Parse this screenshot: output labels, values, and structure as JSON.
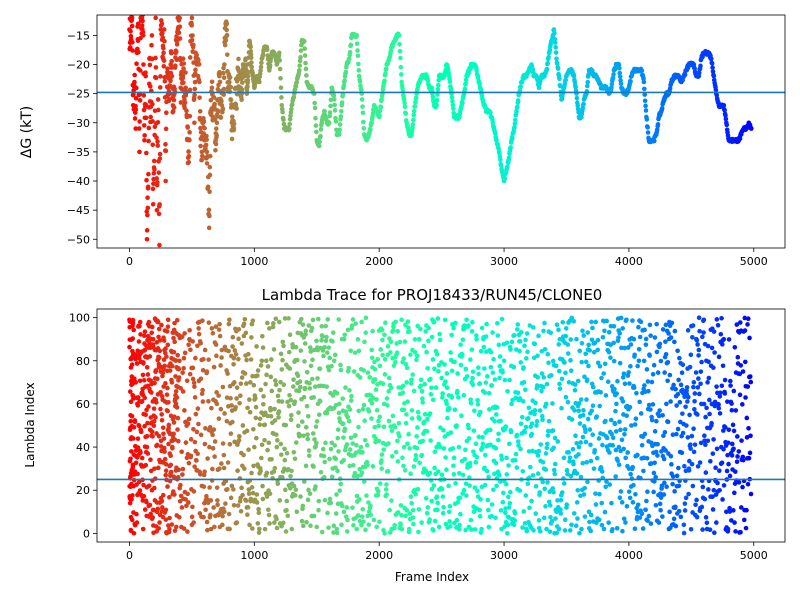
{
  "chart_data": [
    {
      "type": "scatter",
      "title": "",
      "xlabel": "",
      "ylabel": "ΔG (kT)",
      "xlim": [
        -260,
        5250
      ],
      "ylim": [
        -51.5,
        -11.5
      ],
      "xticks": [
        0,
        1000,
        2000,
        3000,
        4000,
        5000
      ],
      "xtick_labels": [
        "0",
        "1000",
        "2000",
        "3000",
        "4000",
        "5000"
      ],
      "yticks": [
        -15,
        -20,
        -25,
        -30,
        -35,
        -40,
        -45,
        -50
      ],
      "ytick_labels": [
        "−15",
        "−20",
        "−25",
        "−30",
        "−35",
        "−40",
        "−45",
        "−50"
      ],
      "hline": -24.8,
      "hline_color": "#1f77b4",
      "colormap": "rainbow (red at frame 0 → purple at frame 5000)",
      "grid": false,
      "series_x": [
        0,
        10,
        20,
        30,
        40,
        50,
        60,
        70,
        80,
        90,
        100,
        110,
        120,
        130,
        140,
        150,
        160,
        170,
        180,
        190,
        200,
        210,
        220,
        230,
        240,
        250,
        260,
        270,
        280,
        290,
        300,
        310,
        320,
        330,
        340,
        350,
        360,
        370,
        380,
        390,
        400,
        410,
        420,
        430,
        440,
        450,
        460,
        470,
        480,
        490,
        500,
        510,
        520,
        530,
        540,
        550,
        560,
        570,
        580,
        590,
        600,
        610,
        620,
        630,
        640,
        650,
        660,
        670,
        680,
        690,
        700,
        710,
        720,
        730,
        740,
        750,
        760,
        770,
        780,
        790,
        800,
        810,
        820,
        830,
        840,
        850,
        860,
        870,
        880,
        890,
        900,
        910,
        920,
        930,
        940,
        950,
        960,
        970,
        980,
        990,
        1000,
        1020,
        1040,
        1060,
        1080,
        1100,
        1120,
        1140,
        1160,
        1180,
        1200,
        1220,
        1240,
        1260,
        1280,
        1300,
        1320,
        1340,
        1360,
        1380,
        1400,
        1420,
        1440,
        1460,
        1480,
        1500,
        1520,
        1540,
        1560,
        1580,
        1600,
        1620,
        1640,
        1660,
        1680,
        1700,
        1720,
        1740,
        1760,
        1780,
        1800,
        1820,
        1840,
        1860,
        1880,
        1900,
        1920,
        1940,
        1960,
        1980,
        2000,
        2020,
        2040,
        2060,
        2080,
        2100,
        2120,
        2140,
        2160,
        2180,
        2200,
        2220,
        2240,
        2260,
        2280,
        2300,
        2320,
        2340,
        2360,
        2380,
        2400,
        2420,
        2440,
        2460,
        2480,
        2500,
        2520,
        2540,
        2560,
        2580,
        2600,
        2620,
        2640,
        2660,
        2680,
        2700,
        2720,
        2740,
        2760,
        2780,
        2800,
        2820,
        2840,
        2860,
        2880,
        2900,
        2920,
        2940,
        2960,
        2980,
        3000,
        3020,
        3040,
        3060,
        3080,
        3100,
        3120,
        3140,
        3160,
        3180,
        3200,
        3220,
        3240,
        3260,
        3280,
        3300,
        3320,
        3340,
        3360,
        3380,
        3400,
        3420,
        3440,
        3460,
        3480,
        3500,
        3520,
        3540,
        3560,
        3580,
        3600,
        3620,
        3640,
        3660,
        3680,
        3700,
        3720,
        3740,
        3760,
        3780,
        3800,
        3820,
        3840,
        3860,
        3880,
        3900,
        3920,
        3940,
        3960,
        3980,
        4000,
        4020,
        4040,
        4060,
        4080,
        4100,
        4120,
        4140,
        4160,
        4180,
        4200,
        4220,
        4240,
        4260,
        4280,
        4300,
        4320,
        4340,
        4360,
        4380,
        4400,
        4420,
        4440,
        4460,
        4480,
        4500,
        4520,
        4540,
        4560,
        4580,
        4600,
        4620,
        4640,
        4660,
        4680,
        4700,
        4720,
        4740,
        4760,
        4780,
        4800,
        4820,
        4840,
        4860,
        4880,
        4900,
        4920,
        4940,
        4960,
        4980
      ],
      "series_y": [
        -14,
        -16,
        -12,
        -27,
        -23,
        -31,
        -18,
        -13,
        -35,
        -12,
        -12,
        -15,
        -33,
        -22,
        -50,
        -41,
        -19,
        -29,
        -15,
        -44,
        -38,
        -12,
        -45,
        -26,
        -51,
        -14,
        -13,
        -19,
        -16,
        -40,
        -22,
        -24,
        -26,
        -20,
        -22,
        -28,
        -25,
        -18,
        -16,
        -12,
        -12,
        -24,
        -22,
        -19,
        -26,
        -24,
        -29,
        -36,
        -33,
        -13,
        -12,
        -17,
        -30,
        -18,
        -20,
        -22,
        -23,
        -34,
        -35,
        -30,
        -33,
        -34,
        -35,
        -41,
        -46,
        -28,
        -24,
        -29,
        -27,
        -33,
        -30,
        -26,
        -22,
        -29,
        -27,
        -25,
        -20,
        -13,
        -13,
        -24,
        -23,
        -26,
        -30,
        -31,
        -27,
        -24,
        -25,
        -22,
        -22,
        -24,
        -25,
        -20,
        -22,
        -19,
        -25,
        -22,
        -16,
        -17,
        -21,
        -22,
        -24,
        -22,
        -23,
        -19,
        -17,
        -17,
        -21,
        -18,
        -18,
        -20,
        -18,
        -27,
        -31,
        -31,
        -31,
        -27,
        -25,
        -23,
        -21,
        -16,
        -16,
        -23,
        -24,
        -24,
        -25,
        -33,
        -34,
        -30,
        -28,
        -30,
        -30,
        -24,
        -26,
        -32,
        -32,
        -27,
        -23,
        -20,
        -19,
        -15,
        -15,
        -15,
        -22,
        -25,
        -32,
        -33,
        -32,
        -30,
        -27,
        -28,
        -29,
        -26,
        -23,
        -20,
        -19,
        -17,
        -16,
        -15,
        -15,
        -23,
        -26,
        -30,
        -32,
        -32,
        -28,
        -25,
        -23,
        -22,
        -22,
        -22,
        -24,
        -24,
        -27,
        -27,
        -22,
        -22,
        -22,
        -20,
        -22,
        -25,
        -29,
        -29,
        -29,
        -27,
        -25,
        -22,
        -21,
        -20,
        -20,
        -21,
        -23,
        -25,
        -27,
        -28,
        -28,
        -29,
        -31,
        -33,
        -35,
        -38,
        -40,
        -38,
        -36,
        -33,
        -31,
        -28,
        -25,
        -23,
        -22,
        -22,
        -21,
        -20,
        -22,
        -22,
        -24,
        -22,
        -22,
        -21,
        -18,
        -16,
        -14,
        -19,
        -22,
        -26,
        -24,
        -22,
        -21,
        -21,
        -22,
        -25,
        -29,
        -29,
        -26,
        -25,
        -21,
        -21,
        -22,
        -22,
        -23,
        -24,
        -24,
        -24,
        -25,
        -24,
        -21,
        -20,
        -20,
        -24,
        -25,
        -25,
        -24,
        -22,
        -21,
        -21,
        -21,
        -21,
        -23,
        -29,
        -33,
        -33,
        -33,
        -32,
        -29,
        -28,
        -26,
        -25,
        -25,
        -23,
        -22,
        -22,
        -22,
        -23,
        -22,
        -21,
        -20,
        -20,
        -20,
        -22,
        -22,
        -19,
        -18,
        -18,
        -18,
        -19,
        -22,
        -25,
        -27,
        -27,
        -27,
        -30,
        -33,
        -33,
        -33,
        -33,
        -33,
        -32,
        -31,
        -31,
        -30,
        -31,
        -32,
        -32,
        -31
      ]
    },
    {
      "type": "scatter",
      "title": "Lambda Trace for PROJ18433/RUN45/CLONE0",
      "xlabel": "Frame Index",
      "ylabel": "Lambda Index",
      "xlim": [
        -260,
        5250
      ],
      "ylim": [
        -4,
        104
      ],
      "xticks": [
        0,
        1000,
        2000,
        3000,
        4000,
        5000
      ],
      "xtick_labels": [
        "0",
        "1000",
        "2000",
        "3000",
        "4000",
        "5000"
      ],
      "yticks": [
        0,
        20,
        40,
        60,
        80,
        100
      ],
      "ytick_labels": [
        "0",
        "20",
        "40",
        "60",
        "80",
        "100"
      ],
      "hline": 25,
      "hline_color": "#1f77b4",
      "colormap": "rainbow (red at frame 0 → purple at frame 5000)",
      "grid": false,
      "density": "dense vertical strips of points spanning lambda 0–100 across all frames",
      "series_x": [
        0,
        5,
        10,
        15,
        20,
        25,
        30,
        40,
        50,
        60,
        70,
        80,
        90,
        100,
        110,
        120,
        130,
        140,
        150,
        160,
        170,
        180,
        190,
        200,
        210,
        220,
        230,
        240,
        250,
        260,
        270,
        280,
        290,
        300,
        310,
        320,
        330,
        340,
        350,
        360,
        370,
        380,
        390,
        400,
        420,
        440,
        460,
        480,
        500,
        520,
        540,
        560,
        580,
        600,
        620,
        640,
        660,
        680,
        700,
        720,
        740,
        760,
        780,
        800,
        820,
        840,
        860,
        880,
        900,
        920,
        940,
        960,
        980,
        1000,
        1020,
        1040,
        1060,
        1080,
        1100,
        1120,
        1140,
        1160,
        1180,
        1200,
        1220,
        1240,
        1260,
        1280,
        1300,
        1320,
        1340,
        1360,
        1380,
        1400,
        1420,
        1440,
        1460,
        1480,
        1500,
        1520,
        1540,
        1560,
        1580,
        1600,
        1620,
        1640,
        1660,
        1680,
        1700,
        1720,
        1740,
        1760,
        1780,
        1800,
        1820,
        1840,
        1860,
        1880,
        1900,
        1920,
        1940,
        1960,
        1980,
        2000,
        2020,
        2040,
        2060,
        2080,
        2100,
        2120,
        2140,
        2160,
        2180,
        2200,
        2220,
        2240,
        2260,
        2280,
        2300,
        2320,
        2340,
        2360,
        2380,
        2400,
        2420,
        2440,
        2460,
        2480,
        2500,
        2520,
        2540,
        2560,
        2580,
        2600,
        2620,
        2640,
        2660,
        2680,
        2700,
        2720,
        2740,
        2760,
        2780,
        2800,
        2820,
        2840,
        2860,
        2880,
        2900,
        2920,
        2940,
        2960,
        2980,
        3000,
        3020,
        3040,
        3060,
        3080,
        3100,
        3120,
        3140,
        3160,
        3180,
        3200,
        3220,
        3240,
        3260,
        3280,
        3300,
        3320,
        3340,
        3360,
        3380,
        3400,
        3420,
        3440,
        3460,
        3480,
        3500,
        3520,
        3540,
        3560,
        3580,
        3600,
        3620,
        3640,
        3660,
        3680,
        3700,
        3720,
        3740,
        3760,
        3780,
        3800,
        3820,
        3840,
        3860,
        3880,
        3900,
        3920,
        3940,
        3960,
        3980,
        4000,
        4020,
        4040,
        4060,
        4080,
        4100,
        4120,
        4140,
        4160,
        4180,
        4200,
        4220,
        4240,
        4260,
        4280,
        4300,
        4320,
        4340,
        4360,
        4380,
        4400,
        4420,
        4440,
        4460,
        4480,
        4500,
        4520,
        4540,
        4560,
        4580,
        4600,
        4620,
        4640,
        4660,
        4680,
        4700,
        4720,
        4740,
        4760,
        4780,
        4800,
        4820,
        4840,
        4860,
        4880,
        4900,
        4920,
        4940,
        4960,
        4980
      ],
      "series_y": [
        99,
        16,
        52,
        38,
        27,
        64,
        44,
        83,
        70,
        5,
        63,
        96,
        48,
        31,
        2,
        88,
        55,
        40,
        97,
        67,
        9,
        20,
        90,
        30,
        62,
        10,
        98,
        34,
        75,
        15,
        49,
        85,
        27,
        57,
        99,
        2,
        36,
        70,
        44,
        18,
        93,
        63,
        26,
        80,
        12,
        57,
        35,
        90,
        4,
        68,
        47,
        98,
        22,
        14,
        75,
        40,
        95,
        3,
        60,
        30,
        85,
        10,
        52,
        99,
        22,
        70,
        5,
        45,
        88,
        30,
        12,
        62,
        97,
        40,
        18,
        2,
        80,
        55,
        28,
        95,
        66,
        5,
        40,
        98,
        76,
        30,
        15,
        84,
        2,
        60,
        10,
        45,
        92,
        24,
        70,
        36,
        8,
        85,
        3,
        55,
        96,
        26,
        68,
        14,
        42,
        80,
        2,
        60,
        33,
        90,
        12,
        52,
        95,
        75,
        2,
        38,
        98,
        24,
        64,
        10,
        85,
        45,
        3,
        94,
        30,
        60,
        18,
        72,
        2,
        50,
        88,
        25,
        99,
        40,
        70,
        2,
        14,
        66,
        45,
        90,
        5,
        30,
        84,
        55,
        15,
        98,
        40,
        3,
        72,
        25,
        60,
        10,
        92,
        35,
        50,
        2,
        82,
        20,
        99,
        44,
        70,
        10,
        90,
        55,
        2,
        30,
        97,
        65,
        8,
        40,
        22,
        52,
        2,
        80,
        35,
        12,
        60,
        4,
        45,
        92,
        25,
        70,
        2,
        38,
        15,
        88,
        50,
        6,
        66,
        30,
        2,
        52,
        20,
        78,
        10,
        2,
        58,
        35,
        12,
        70,
        4,
        28,
        90,
        40,
        2,
        18,
        62,
        10,
        98,
        30,
        5,
        44,
        72,
        2,
        24,
        84,
        14,
        96,
        60,
        40,
        86,
        74,
        99,
        30,
        50,
        90,
        65,
        80,
        45,
        35,
        15,
        8,
        42,
        28,
        52,
        5,
        38,
        18,
        60,
        2,
        32,
        12,
        46,
        22,
        66,
        4,
        50,
        30,
        96,
        70,
        90,
        85,
        60,
        99,
        80,
        72,
        50,
        20,
        5,
        58,
        40,
        90,
        10,
        48,
        6,
        66,
        24,
        38,
        12
      ]
    }
  ]
}
